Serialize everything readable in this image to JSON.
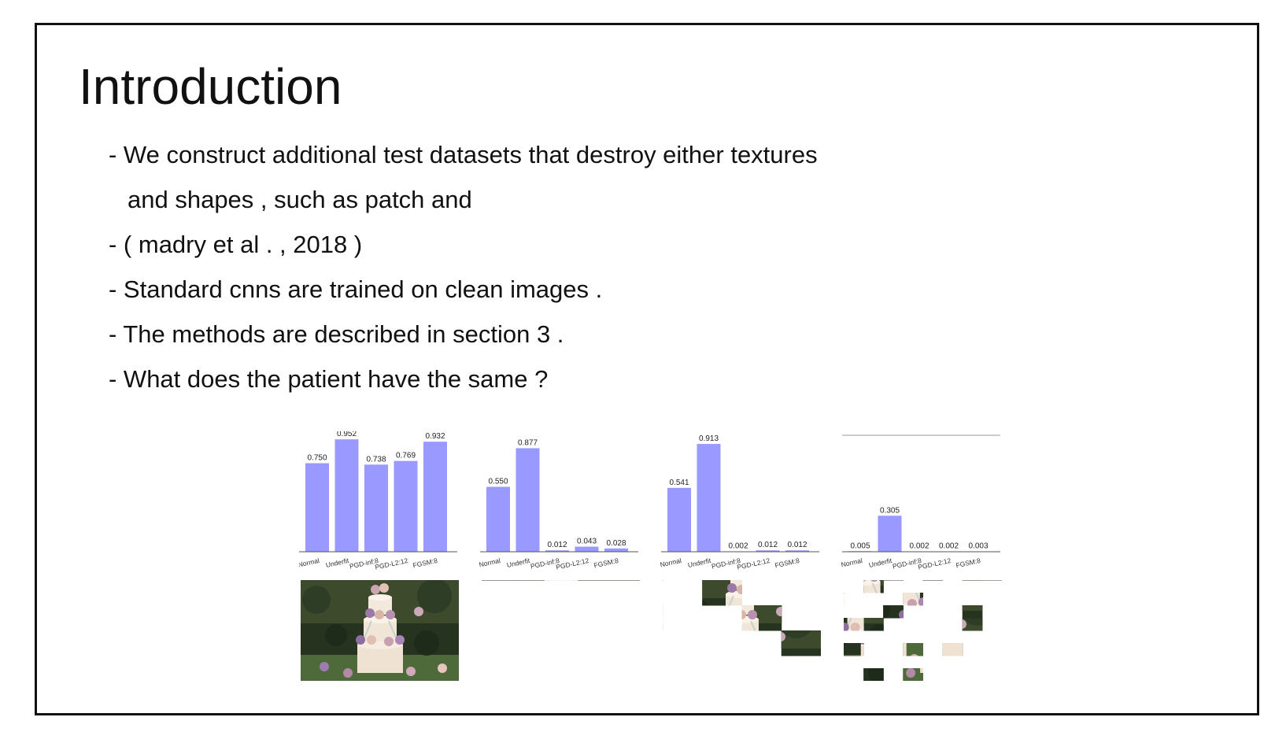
{
  "slide": {
    "title": "Introduction",
    "bullets": [
      {
        "lines": [
          "- We construct additional test datasets that destroy either textures",
          "and shapes , such as patch and"
        ]
      },
      {
        "lines": [
          "- ( madry et al . , 2018 )"
        ]
      },
      {
        "lines": [
          "- Standard cnns are trained on clean images ."
        ]
      },
      {
        "lines": [
          "- The methods are described in section 3 ."
        ]
      },
      {
        "lines": [
          "- What does the patient have the same ?"
        ]
      }
    ]
  },
  "bar_color": "#9999ff",
  "chart_data": [
    {
      "type": "bar",
      "categories": [
        "Normal",
        "Underfit",
        "PGD-inf:8",
        "PGD-L2:12",
        "FGSM:8"
      ],
      "values": [
        0.75,
        0.952,
        0.738,
        0.769,
        0.932
      ],
      "data_labels": [
        "0.750",
        "0.952",
        "0.738",
        "0.769",
        "0.932"
      ],
      "ylim": [
        0,
        1
      ]
    },
    {
      "type": "bar",
      "categories": [
        "Normal",
        "Underfit",
        "PGD-inf:8",
        "PGD-L2:12",
        "FGSM:8"
      ],
      "values": [
        0.55,
        0.877,
        0.012,
        0.043,
        0.028
      ],
      "data_labels": [
        "0.550",
        "0.877",
        "0.012",
        "0.043",
        "0.028"
      ],
      "ylim": [
        0,
        1
      ]
    },
    {
      "type": "bar",
      "categories": [
        "Normal",
        "Underfit",
        "PGD-inf:8",
        "PGD-L2:12",
        "FGSM:8"
      ],
      "values": [
        0.541,
        0.913,
        0.002,
        0.012,
        0.012
      ],
      "data_labels": [
        "0.541",
        "0.913",
        "0.002",
        "0.012",
        "0.012"
      ],
      "ylim": [
        0,
        1
      ]
    },
    {
      "type": "bar",
      "categories": [
        "Normal",
        "Underfit",
        "PGD-inf:8",
        "PGD-L2:12",
        "FGSM:8"
      ],
      "values": [
        0.005,
        0.305,
        0.002,
        0.002,
        0.003
      ],
      "data_labels": [
        "0.005",
        "0.305",
        "0.002",
        "0.002",
        "0.003"
      ],
      "ylim": [
        0,
        1
      ]
    }
  ],
  "thumbnails": [
    {
      "grid": 1
    },
    {
      "grid": 2
    },
    {
      "grid": 4
    },
    {
      "grid": 8
    }
  ]
}
